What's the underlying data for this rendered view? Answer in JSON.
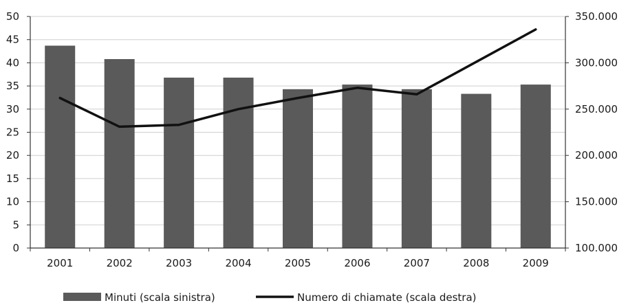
{
  "chart_data": {
    "type": "bar",
    "categories": [
      "2001",
      "2002",
      "2003",
      "2004",
      "2005",
      "2006",
      "2007",
      "2008",
      "2009"
    ],
    "series": [
      {
        "name": "Minuti (scala sinistra)",
        "type": "bar",
        "axis": "left",
        "values": [
          43.7,
          40.8,
          36.8,
          36.8,
          34.3,
          35.3,
          34.3,
          33.3,
          35.3
        ]
      },
      {
        "name": "Numero di chiamate (scala destra)",
        "type": "line",
        "axis": "right",
        "values": [
          262000,
          231000,
          233000,
          250000,
          262000,
          273000,
          266000,
          301000,
          336000
        ]
      }
    ],
    "left_axis": {
      "min": 0,
      "max": 50,
      "step": 5,
      "tick_labels": [
        "0",
        "5",
        "10",
        "15",
        "20",
        "25",
        "30",
        "35",
        "40",
        "45",
        "50"
      ]
    },
    "right_axis": {
      "min": 100000,
      "max": 350000,
      "step": 50000,
      "tick_labels": [
        "100.000",
        "150.000",
        "200.000",
        "250.000",
        "300.000",
        "350.000"
      ]
    },
    "grid": true,
    "legend_position": "bottom",
    "colors": {
      "bar": "#5a5a5a",
      "line": "#111111",
      "grid": "#cfcfcf",
      "axis": "#333333"
    }
  }
}
